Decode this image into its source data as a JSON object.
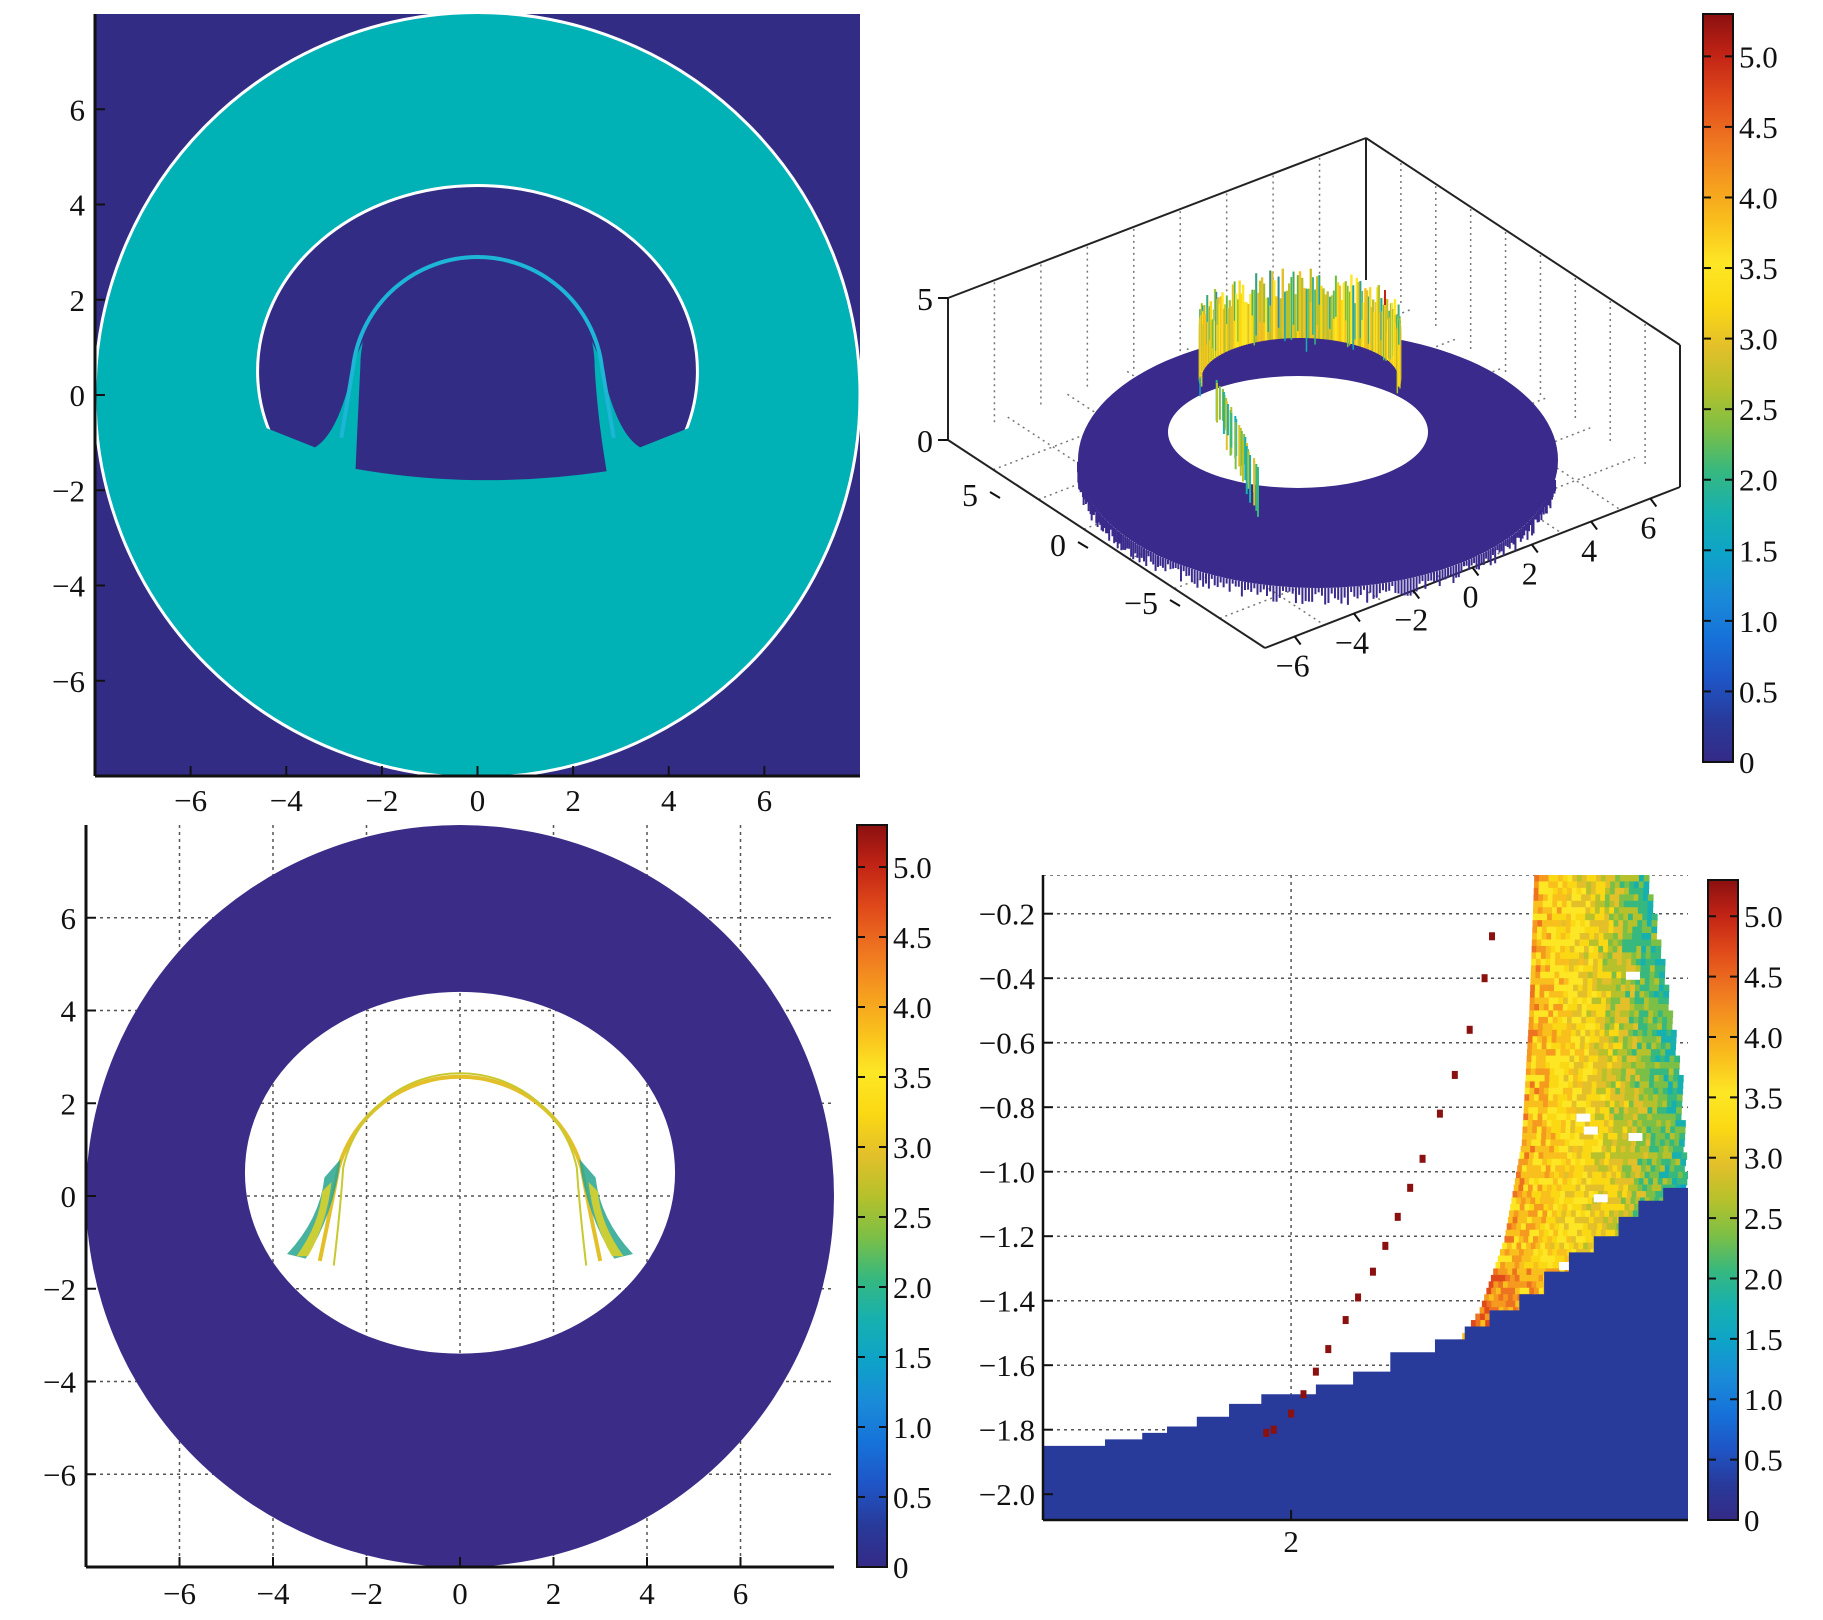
{
  "palette": [
    "#352a87",
    "#283a9a",
    "#1f55c6",
    "#1672d9",
    "#1a8bd8",
    "#0ea3c8",
    "#17b0b0",
    "#36b87f",
    "#7cbf46",
    "#b6c12b",
    "#e3c02a",
    "#fbd814",
    "#fde725",
    "#f9bf1c",
    "#f59a1f",
    "#ee7320",
    "#e04a1a",
    "#c22415",
    "#8b1010"
  ],
  "colors": {
    "background_dark": "#332c85",
    "cyan_fill": "#00b1b5",
    "cyan_arc": "#1eb6d6",
    "white": "#ffffff",
    "grid": "#555555"
  },
  "chart_data": [
    {
      "id": "top-left",
      "type": "heatmap",
      "title": "",
      "xlabel": "",
      "ylabel": "",
      "xlim": [
        -8,
        8
      ],
      "ylim": [
        -8,
        8
      ],
      "x_ticks": [
        -6,
        -4,
        -2,
        0,
        2,
        4,
        6
      ],
      "y_ticks": [
        6,
        4,
        2,
        0,
        -2,
        -4,
        -6
      ],
      "x_tick_labels": [
        "−6",
        "−4",
        "−2",
        "0",
        "2",
        "4",
        "6"
      ],
      "y_tick_labels": [
        "6",
        "4",
        "2",
        "0",
        "−2",
        "−4",
        "−6"
      ],
      "grid": false,
      "regions": {
        "annulus_outer_radius": 8,
        "inner_hole_center": [
          0,
          0.5
        ],
        "inner_hole_radii": [
          4.6,
          3.9
        ],
        "arc_radius": 2.7,
        "arc_base_y": -1.6,
        "annulus_value": 1.8,
        "background_value": 0.2
      }
    },
    {
      "id": "top-right",
      "type": "surface",
      "title": "",
      "z_ticks": [
        0,
        5
      ],
      "z_tick_labels": [
        "0",
        "5"
      ],
      "y_ticks": [
        5,
        0,
        -5
      ],
      "y_tick_labels": [
        "5",
        "0",
        "−5"
      ],
      "x_ticks": [
        -6,
        -4,
        -2,
        0,
        2,
        4,
        6
      ],
      "x_tick_labels": [
        "−6",
        "−4",
        "−2",
        "0",
        "2",
        "4",
        "6"
      ],
      "zlim": [
        0,
        5
      ],
      "ring_height_range": [
        2.5,
        4.0
      ]
    },
    {
      "id": "bottom-left",
      "type": "heatmap",
      "title": "",
      "xlim": [
        -8,
        8
      ],
      "ylim": [
        -8,
        8
      ],
      "x_ticks": [
        -6,
        -4,
        -2,
        0,
        2,
        4,
        6
      ],
      "y_ticks": [
        6,
        4,
        2,
        0,
        -2,
        -4,
        -6
      ],
      "x_tick_labels": [
        "−6",
        "−4",
        "−2",
        "0",
        "2",
        "4",
        "6"
      ],
      "y_tick_labels": [
        "6",
        "4",
        "2",
        "0",
        "−2",
        "−4",
        "−6"
      ],
      "grid": true,
      "regions": {
        "disk_radius": 8,
        "inner_hole_center": [
          0,
          0.5
        ],
        "inner_hole_radii": [
          4.6,
          3.9
        ],
        "arc_radius": 2.7,
        "arc_value": 3.0,
        "disk_value": 0.3
      }
    },
    {
      "id": "bottom-right",
      "type": "heatmap",
      "title": "",
      "xlim": [
        1.0,
        3.6
      ],
      "ylim": [
        -2.08,
        -0.08
      ],
      "x_ticks": [
        2
      ],
      "x_tick_labels": [
        "2"
      ],
      "y_ticks": [
        -0.2,
        -0.4,
        -0.6,
        -0.8,
        -1.0,
        -1.2,
        -1.4,
        -1.6,
        -1.8,
        -2.0
      ],
      "y_tick_labels": [
        "−0.2",
        "−0.4",
        "−0.6",
        "−0.8",
        "−1.0",
        "−1.2",
        "−1.4",
        "−1.6",
        "−1.8",
        "−2.0"
      ],
      "grid": true,
      "red_points": [
        {
          "x": 1.9,
          "y": -1.81,
          "v": 5.2
        },
        {
          "x": 1.93,
          "y": -1.8,
          "v": 5.2
        },
        {
          "x": 2.0,
          "y": -1.75,
          "v": 5.2
        },
        {
          "x": 2.05,
          "y": -1.69,
          "v": 5.2
        },
        {
          "x": 2.1,
          "y": -1.62,
          "v": 5.2
        },
        {
          "x": 2.15,
          "y": -1.55,
          "v": 5.2
        },
        {
          "x": 2.22,
          "y": -1.46,
          "v": 5.2
        },
        {
          "x": 2.27,
          "y": -1.39,
          "v": 5.2
        },
        {
          "x": 2.33,
          "y": -1.31,
          "v": 5.2
        },
        {
          "x": 2.38,
          "y": -1.23,
          "v": 5.2
        },
        {
          "x": 2.43,
          "y": -1.14,
          "v": 5.2
        },
        {
          "x": 2.48,
          "y": -1.05,
          "v": 5.2
        },
        {
          "x": 2.53,
          "y": -0.96,
          "v": 5.2
        },
        {
          "x": 2.6,
          "y": -0.82,
          "v": 5.2
        },
        {
          "x": 2.66,
          "y": -0.7,
          "v": 5.2
        },
        {
          "x": 2.72,
          "y": -0.56,
          "v": 5.2
        },
        {
          "x": 2.78,
          "y": -0.4,
          "v": 5.2
        },
        {
          "x": 2.81,
          "y": -0.27,
          "v": 5.2
        }
      ],
      "plume": {
        "left_edge": [
          [
            2.98,
            -0.08
          ],
          [
            2.96,
            -0.5
          ],
          [
            2.93,
            -0.9
          ],
          [
            2.86,
            -1.2
          ],
          [
            2.76,
            -1.42
          ],
          [
            2.62,
            -1.58
          ]
        ],
        "right_edge": [
          [
            3.43,
            -0.08
          ],
          [
            3.5,
            -0.4
          ],
          [
            3.56,
            -0.7
          ],
          [
            3.58,
            -1.0
          ],
          [
            3.6,
            -1.16
          ]
        ],
        "value_range": [
          2.0,
          4.0
        ]
      },
      "floor_steps": [
        [
          1.0,
          -1.85
        ],
        [
          1.25,
          -1.85
        ],
        [
          1.25,
          -1.83
        ],
        [
          1.4,
          -1.83
        ],
        [
          1.4,
          -1.81
        ],
        [
          1.5,
          -1.81
        ],
        [
          1.5,
          -1.79
        ],
        [
          1.62,
          -1.79
        ],
        [
          1.62,
          -1.76
        ],
        [
          1.75,
          -1.76
        ],
        [
          1.75,
          -1.72
        ],
        [
          1.88,
          -1.72
        ],
        [
          1.88,
          -1.69
        ],
        [
          2.1,
          -1.69
        ],
        [
          2.1,
          -1.66
        ],
        [
          2.25,
          -1.66
        ],
        [
          2.25,
          -1.62
        ],
        [
          2.4,
          -1.62
        ],
        [
          2.4,
          -1.56
        ],
        [
          2.58,
          -1.56
        ],
        [
          2.58,
          -1.52
        ],
        [
          2.7,
          -1.52
        ],
        [
          2.7,
          -1.48
        ],
        [
          2.8,
          -1.48
        ],
        [
          2.8,
          -1.43
        ],
        [
          2.92,
          -1.43
        ],
        [
          2.92,
          -1.38
        ],
        [
          3.02,
          -1.38
        ],
        [
          3.02,
          -1.31
        ],
        [
          3.12,
          -1.31
        ],
        [
          3.12,
          -1.25
        ],
        [
          3.22,
          -1.25
        ],
        [
          3.22,
          -1.2
        ],
        [
          3.32,
          -1.2
        ],
        [
          3.32,
          -1.14
        ],
        [
          3.4,
          -1.14
        ],
        [
          3.4,
          -1.09
        ],
        [
          3.5,
          -1.09
        ],
        [
          3.5,
          -1.05
        ],
        [
          3.6,
          -1.05
        ]
      ],
      "floor_value": 0.3
    }
  ],
  "colorbars": [
    {
      "id": "colorbar-top-right",
      "range": [
        0,
        5.3
      ],
      "ticks": [
        5.0,
        4.5,
        4.0,
        3.5,
        3.0,
        2.5,
        2.0,
        1.5,
        1.0,
        0.5,
        0
      ],
      "tick_labels": [
        "5.0",
        "4.5",
        "4.0",
        "3.5",
        "3.0",
        "2.5",
        "2.0",
        "1.5",
        "1.0",
        "0.5",
        "0"
      ]
    },
    {
      "id": "colorbar-bottom-left",
      "range": [
        0,
        5.3
      ],
      "ticks": [
        5.0,
        4.5,
        4.0,
        3.5,
        3.0,
        2.5,
        2.0,
        1.5,
        1.0,
        0.5,
        0
      ],
      "tick_labels": [
        "5.0",
        "4.5",
        "4.0",
        "3.5",
        "3.0",
        "2.5",
        "2.0",
        "1.5",
        "1.0",
        "0.5",
        "0"
      ]
    },
    {
      "id": "colorbar-bottom-right",
      "range": [
        0,
        5.3
      ],
      "ticks": [
        5.0,
        4.5,
        4.0,
        3.5,
        3.0,
        2.5,
        2.0,
        1.5,
        1.0,
        0.5,
        0
      ],
      "tick_labels": [
        "5.0",
        "4.5",
        "4.0",
        "3.5",
        "3.0",
        "2.5",
        "2.0",
        "1.5",
        "1.0",
        "0.5",
        "0"
      ]
    }
  ]
}
